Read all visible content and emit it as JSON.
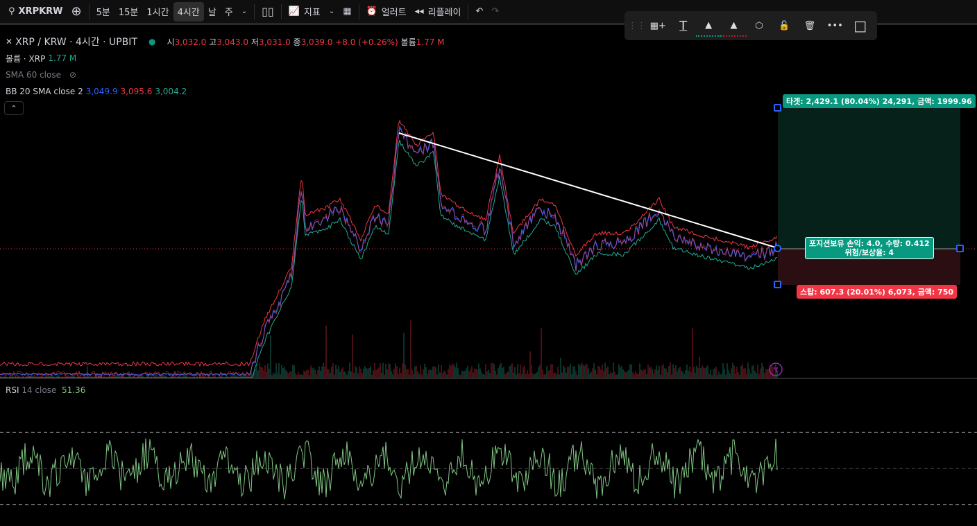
{
  "toolbar": {
    "symbol": "XRPKRW",
    "intervals": [
      "5분",
      "15분",
      "1시간",
      "4시간",
      "날",
      "주"
    ],
    "active_interval": "4시간",
    "indicators": "지표",
    "alert": "얼러트",
    "replay": "리플레이"
  },
  "legend": {
    "title": "XRP / KRW · 4시간 · UPBIT",
    "o_label": "시",
    "o": "3,032.0",
    "h_label": "고",
    "h": "3,043.0",
    "l_label": "저",
    "l": "3,031.0",
    "c_label": "종",
    "c": "3,039.0",
    "change": "+8.0 (+0.26%)",
    "vol_label": "볼륨",
    "vol": "1.77 M",
    "volume_title": "볼륨 · XRP",
    "volume_value": "1.77 M",
    "sma_title": "SMA 60 close",
    "bb_title": "BB 20 SMA close 2",
    "bb_basis": "3,049.9",
    "bb_upper": "3,095.6",
    "bb_lower": "3,004.2"
  },
  "rsi": {
    "title": "RSI",
    "params": "14 close",
    "value": "51.36"
  },
  "position": {
    "target": "타겟: 2,429.1 (80.04%) 24,291, 금액: 1999.96",
    "stop": "스탑: 607.3 (20.01%) 6,073, 금액: 750",
    "center_line1": "포지션보유 손익: 4.0, 수량: 0.412",
    "center_line2": "위험/보상율: 4"
  },
  "colors": {
    "up": "#22ab94",
    "down": "#f23645",
    "bb_basis": "#2962ff",
    "rsi": "#81c784",
    "target_bg": "#089981",
    "stop_bg": "#f23645"
  },
  "icons": [
    "search-icon",
    "plus-circle-icon",
    "chevron-down-icon",
    "candles-icon",
    "indicators-icon",
    "layout-icon",
    "alert-icon",
    "replay-icon",
    "undo-icon",
    "redo-icon",
    "drag-handle-icon",
    "add-template-icon",
    "text-icon",
    "fill-color-icon",
    "line-color-icon",
    "hexagon-icon",
    "unlock-icon",
    "trash-icon",
    "more-icon",
    "select-box-icon",
    "eye-off-icon",
    "lightning-icon"
  ]
}
